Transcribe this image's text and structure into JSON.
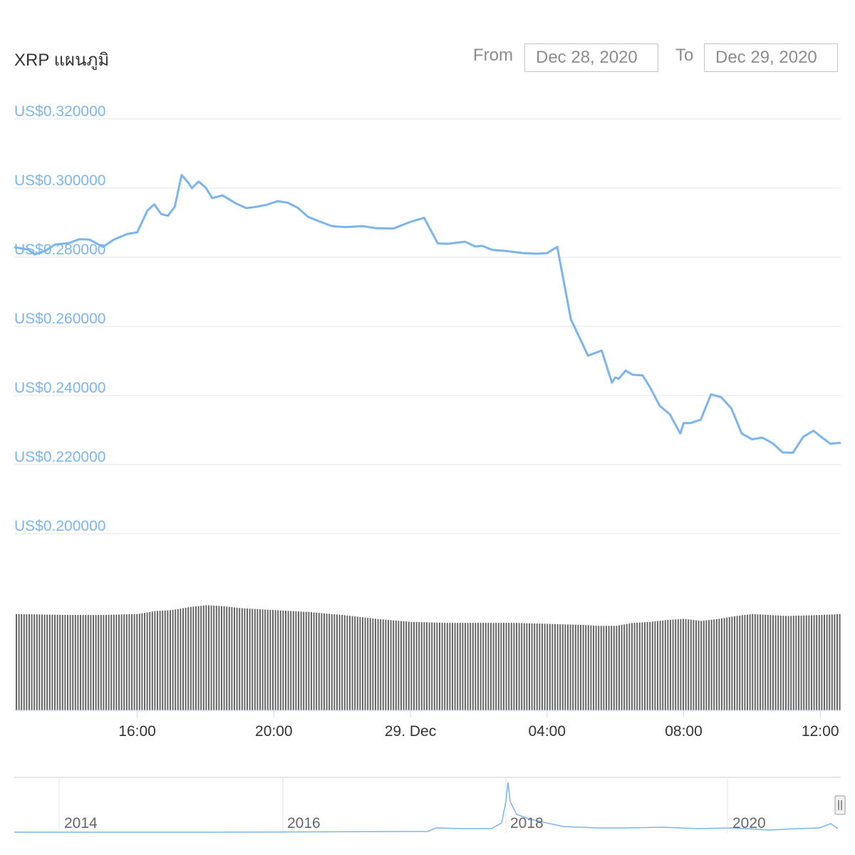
{
  "header": {
    "title": "XRP แผนภูมิ",
    "from_label": "From",
    "from_value": "Dec 28, 2020",
    "to_label": "To",
    "to_value": "Dec 29, 2020"
  },
  "chart_data": {
    "type": "line",
    "title": "XRP แผนภูมิ",
    "xlabel": "",
    "ylabel": "",
    "y_tick_labels": [
      "US$0.320000",
      "US$0.300000",
      "US$0.280000",
      "US$0.260000",
      "US$0.240000",
      "US$0.220000",
      "US$0.200000"
    ],
    "y_ticks": [
      0.32,
      0.3,
      0.28,
      0.26,
      0.24,
      0.22,
      0.2
    ],
    "ylim": [
      0.2,
      0.32
    ],
    "x_tick_labels": [
      "16:00",
      "20:00",
      "29. Dec",
      "04:00",
      "08:00",
      "12:00"
    ],
    "x_ticks": [
      16,
      20,
      24,
      28,
      32,
      36
    ],
    "x_unit": "hours since Dec 28 00:00",
    "xlim": [
      12.4,
      36.6
    ],
    "grid": "horizontal",
    "line_color": "#7cb5ec",
    "volume_color": "#666666",
    "series": [
      {
        "x": [
          12.4,
          12.8,
          13.0,
          13.3,
          13.6,
          14.0,
          14.3,
          14.6,
          15.0,
          15.3,
          15.7,
          16.0,
          16.3,
          16.5,
          16.7,
          16.9,
          17.1,
          17.3,
          17.5,
          17.6,
          17.8,
          18.0,
          18.2,
          18.5,
          18.9,
          19.2,
          19.5,
          19.8,
          20.1,
          20.4,
          20.7,
          21.0,
          21.3,
          21.7,
          22.1,
          22.6,
          23.0,
          23.5,
          24.0,
          24.4,
          24.8,
          25.1,
          25.6,
          25.9,
          26.1,
          26.4,
          26.8,
          27.3,
          27.7,
          28.0,
          28.3,
          28.7,
          29.2,
          29.6,
          29.9,
          30.0,
          30.1,
          30.3,
          30.5,
          30.8,
          31.0,
          31.3,
          31.6,
          31.9,
          32.0,
          32.2,
          32.5,
          32.8,
          33.1,
          33.4,
          33.7,
          34.0,
          34.3,
          34.6,
          34.9,
          35.2,
          35.5,
          35.8,
          36.0,
          36.3,
          36.6
        ],
        "values": [
          0.2829,
          0.2822,
          0.2808,
          0.2818,
          0.2837,
          0.2841,
          0.2852,
          0.2851,
          0.283,
          0.285,
          0.2867,
          0.2872,
          0.2935,
          0.2953,
          0.2925,
          0.292,
          0.2946,
          0.3038,
          0.3015,
          0.3,
          0.3019,
          0.3002,
          0.2971,
          0.2979,
          0.2955,
          0.2942,
          0.2946,
          0.2952,
          0.2962,
          0.2958,
          0.2943,
          0.2917,
          0.2905,
          0.289,
          0.2887,
          0.289,
          0.2884,
          0.2883,
          0.2902,
          0.2914,
          0.284,
          0.2839,
          0.2845,
          0.2831,
          0.2833,
          0.2821,
          0.2818,
          0.2812,
          0.281,
          0.2812,
          0.283,
          0.262,
          0.2515,
          0.253,
          0.2437,
          0.2452,
          0.2448,
          0.2472,
          0.246,
          0.2458,
          0.2426,
          0.237,
          0.2345,
          0.229,
          0.232,
          0.232,
          0.233,
          0.2403,
          0.2395,
          0.2362,
          0.229,
          0.2273,
          0.2278,
          0.2262,
          0.2235,
          0.2234,
          0.228,
          0.2298,
          0.2282,
          0.226,
          0.2263
        ]
      }
    ],
    "volume": {
      "x": [
        12.4,
        14.0,
        15.0,
        16.0,
        16.5,
        17.0,
        17.5,
        18.0,
        18.5,
        19.0,
        20.0,
        21.0,
        22.0,
        23.0,
        24.0,
        25.0,
        26.0,
        27.0,
        28.0,
        29.0,
        29.5,
        30.0,
        30.5,
        31.0,
        31.5,
        32.0,
        32.5,
        33.0,
        33.5,
        34.0,
        35.0,
        36.0,
        36.6
      ],
      "rel_height": [
        0.98,
        0.97,
        0.97,
        0.98,
        1.01,
        1.02,
        1.05,
        1.07,
        1.06,
        1.04,
        1.02,
        1.0,
        0.97,
        0.93,
        0.9,
        0.89,
        0.89,
        0.89,
        0.88,
        0.87,
        0.86,
        0.86,
        0.89,
        0.9,
        0.92,
        0.93,
        0.91,
        0.93,
        0.96,
        0.98,
        0.96,
        0.97,
        0.98
      ]
    }
  },
  "navigator": {
    "labels": [
      "2014",
      "2016",
      "2018",
      "2020"
    ]
  }
}
